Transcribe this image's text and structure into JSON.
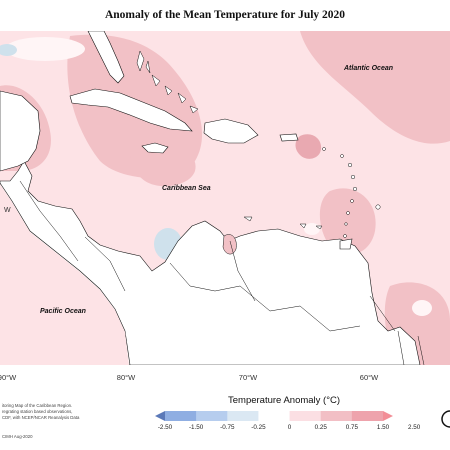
{
  "title": "Anomaly of the Mean Temperature for July 2020",
  "map": {
    "labels": {
      "atlantic": "Atlantic Ocean",
      "caribbean": "Caribbean Sea",
      "pacific": "Pacific Ocean",
      "pacific_edge": "W"
    },
    "lon_labels": [
      "90°W",
      "80°W",
      "70°W",
      "60°W"
    ],
    "colors": {
      "background": "#fde3e6",
      "warm_mid": "#f2c1c6",
      "warm_strong": "#e9a9b1",
      "near_zero": "#fff5f6",
      "cool": "#cfe1ec",
      "land": "#ffffff",
      "coast": "#111111"
    }
  },
  "legend": {
    "title": "Temperature Anomaly (°C)",
    "ticks": [
      "-2.50",
      "-1.50",
      "-0.75",
      "-0.25",
      "0",
      "0.25",
      "0.75",
      "1.50",
      "2.50"
    ],
    "colors": [
      "#5b79b8",
      "#8faee2",
      "#b6cdee",
      "#dbe8f3",
      "#ffffff",
      "#fbdfe3",
      "#f2bfc5",
      "#eea3ac",
      "#f28e97"
    ]
  },
  "credit": {
    "lines": [
      "itoring Map of the Caribbean Region.",
      "regrating station based observations,",
      "CDF, with NCEP/NCAR Reanalysis Data"
    ],
    "date": "CIMH Aug-2020"
  }
}
